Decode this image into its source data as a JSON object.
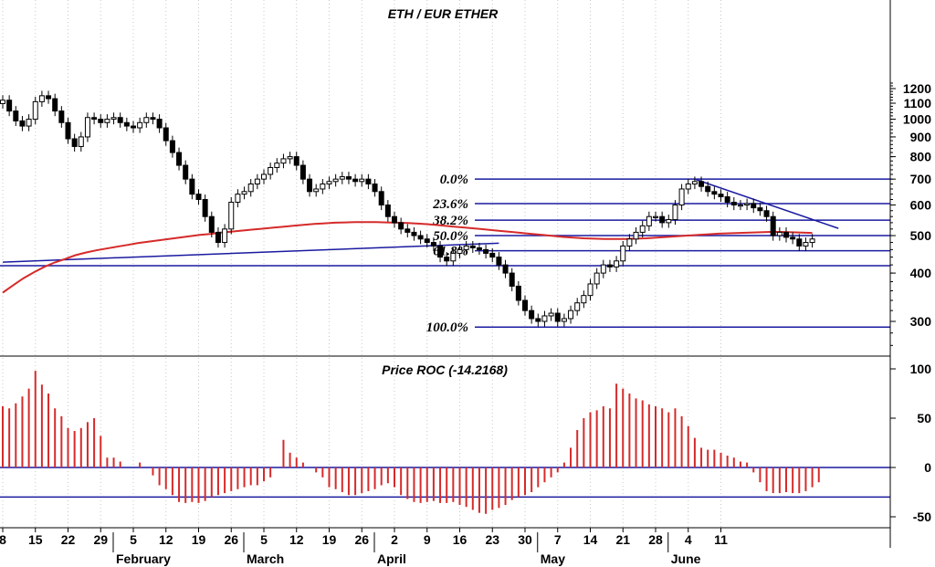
{
  "chart_data": [
    {
      "type": "candlestick",
      "title": "ETH / EUR ETHER",
      "yscale": "log",
      "ylim": [
        250,
        1300
      ],
      "yticks": [
        300,
        400,
        500,
        600,
        700,
        800,
        900,
        1000,
        1100,
        1200
      ],
      "x_day_ticks": [
        "8",
        "15",
        "22",
        "29",
        "5",
        "12",
        "19",
        "26",
        "5",
        "12",
        "19",
        "26",
        "2",
        "9",
        "16",
        "23",
        "30",
        "7",
        "14",
        "21",
        "28",
        "4",
        "11"
      ],
      "month_labels": [
        "February",
        "March",
        "April",
        "May",
        "June"
      ],
      "close_series": [
        1120,
        1050,
        990,
        960,
        1000,
        1110,
        1150,
        1130,
        1050,
        980,
        890,
        850,
        900,
        1010,
        1000,
        980,
        1000,
        1010,
        980,
        960,
        950,
        980,
        1010,
        1000,
        950,
        880,
        820,
        760,
        700,
        640,
        620,
        560,
        510,
        480,
        520,
        610,
        640,
        650,
        680,
        700,
        720,
        750,
        770,
        790,
        800,
        760,
        700,
        650,
        660,
        680,
        690,
        700,
        710,
        700,
        690,
        700,
        680,
        650,
        600,
        560,
        540,
        520,
        510,
        500,
        490,
        480,
        470,
        440,
        430,
        450,
        460,
        470,
        465,
        460,
        450,
        440,
        420,
        400,
        370,
        340,
        320,
        305,
        300,
        310,
        315,
        300,
        305,
        320,
        335,
        350,
        375,
        400,
        420,
        415,
        430,
        470,
        490,
        510,
        530,
        560,
        560,
        540,
        550,
        600,
        660,
        680,
        690,
        670,
        650,
        640,
        630,
        610,
        600,
        600,
        605,
        590,
        580,
        560,
        500,
        510,
        495,
        490,
        470,
        480,
        490
      ],
      "ma_series": [
        356,
        372,
        388,
        402,
        415,
        426,
        435,
        445,
        452,
        458,
        463,
        468,
        473,
        478,
        482,
        486,
        490,
        494,
        498,
        502,
        505,
        509,
        512,
        515,
        518,
        521,
        524,
        527,
        530,
        533,
        536,
        538,
        540,
        541,
        542,
        542,
        542,
        541,
        540,
        539,
        537,
        535,
        532,
        529,
        526,
        523,
        520,
        517,
        514,
        511,
        508,
        505,
        502,
        499,
        496,
        494,
        492,
        491,
        490,
        490,
        490,
        491,
        492,
        494,
        496,
        498,
        500,
        502,
        504,
        506,
        507,
        508,
        509,
        510,
        511,
        511,
        510,
        509,
        508
      ],
      "trendlines": [
        {
          "from": [
            0,
            427
          ],
          "to": [
            76,
            478
          ]
        },
        {
          "from": [
            106,
            700
          ],
          "to": [
            128,
            522
          ]
        }
      ],
      "horizontal_lines": [
        418
      ],
      "fibonacci": [
        {
          "label": "0.0%",
          "price": 700
        },
        {
          "label": "23.6%",
          "price": 605
        },
        {
          "label": "38.2%",
          "price": 548
        },
        {
          "label": "50.0%",
          "price": 500
        },
        {
          "label": "61.8%",
          "price": 457
        },
        {
          "label": "100.0%",
          "price": 290
        }
      ]
    },
    {
      "type": "bar",
      "title": "Price ROC (-14.2168)",
      "ylim": [
        -60,
        110
      ],
      "yticks": [
        100,
        50,
        0,
        -50
      ],
      "horizontal_lines": [
        0,
        -30
      ],
      "values": [
        62,
        60,
        65,
        72,
        80,
        98,
        84,
        75,
        60,
        52,
        40,
        37,
        40,
        46,
        50,
        32,
        10,
        10,
        6,
        0,
        0,
        5,
        0,
        -8,
        -18,
        -22,
        -28,
        -35,
        -36,
        -35,
        -36,
        -34,
        -30,
        -28,
        -26,
        -24,
        -22,
        -20,
        -18,
        -18,
        -14,
        -10,
        0,
        28,
        15,
        10,
        5,
        0,
        -5,
        -10,
        -20,
        -22,
        -25,
        -28,
        -28,
        -26,
        -24,
        -22,
        -18,
        -16,
        -20,
        -28,
        -32,
        -35,
        -36,
        -35,
        -34,
        -36,
        -36,
        -35,
        -38,
        -40,
        -43,
        -46,
        -47,
        -43,
        -41,
        -38,
        -33,
        -30,
        -28,
        -25,
        -20,
        -15,
        -10,
        -5,
        5,
        20,
        38,
        50,
        56,
        58,
        62,
        60,
        85,
        80,
        75,
        70,
        68,
        64,
        62,
        60,
        56,
        60,
        52,
        42,
        30,
        20,
        18,
        18,
        15,
        12,
        10,
        6,
        5,
        -5,
        -15,
        -24,
        -26,
        -26,
        -25,
        -26,
        -26,
        -24,
        -20,
        -15
      ]
    }
  ]
}
